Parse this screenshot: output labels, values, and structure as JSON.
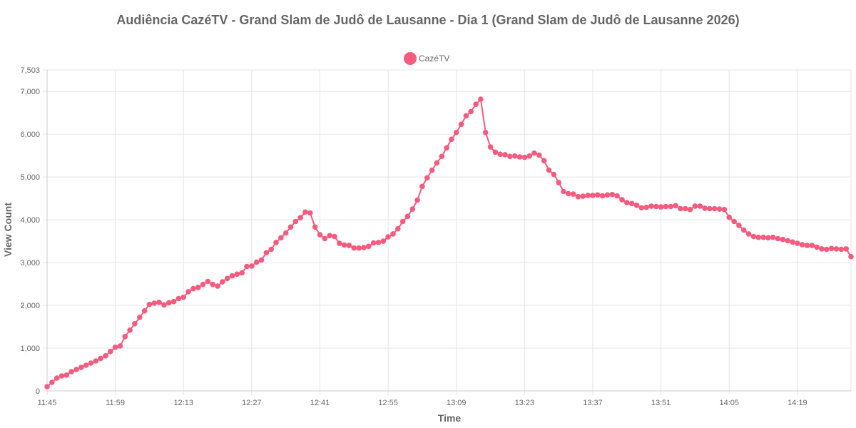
{
  "chart_data": {
    "type": "line",
    "title": "Audiência CazéTV - Grand Slam de Judô de Lausanne - Dia 1 (Grand Slam de Judô de Lausanne 2026)",
    "xlabel": "Time",
    "ylabel": "View Count",
    "ylim": [
      0,
      7503
    ],
    "y_ticks": [
      "0",
      "1,000",
      "2,000",
      "3,000",
      "4,000",
      "5,000",
      "6,000",
      "7,000",
      "7,503"
    ],
    "y_tick_values": [
      0,
      1000,
      2000,
      3000,
      4000,
      5000,
      6000,
      7000,
      7503
    ],
    "x_ticks": [
      "11:45",
      "11:59",
      "12:13",
      "12:27",
      "12:41",
      "12:55",
      "13:09",
      "13:23",
      "13:37",
      "13:51",
      "14:05",
      "14:19"
    ],
    "x_range": [
      "11:45",
      "14:30"
    ],
    "grid": true,
    "legend_position": "top-center",
    "series": [
      {
        "name": "CazéTV",
        "color": "#f45b7e",
        "x": [
          "11:45",
          "11:46",
          "11:47",
          "11:48",
          "11:49",
          "11:50",
          "11:51",
          "11:52",
          "11:53",
          "11:54",
          "11:55",
          "11:56",
          "11:57",
          "11:58",
          "11:59",
          "12:00",
          "12:01",
          "12:02",
          "12:03",
          "12:04",
          "12:05",
          "12:06",
          "12:07",
          "12:08",
          "12:09",
          "12:10",
          "12:11",
          "12:12",
          "12:13",
          "12:14",
          "12:15",
          "12:16",
          "12:17",
          "12:18",
          "12:19",
          "12:20",
          "12:21",
          "12:22",
          "12:23",
          "12:24",
          "12:25",
          "12:26",
          "12:27",
          "12:28",
          "12:29",
          "12:30",
          "12:31",
          "12:32",
          "12:33",
          "12:34",
          "12:35",
          "12:36",
          "12:37",
          "12:38",
          "12:39",
          "12:40",
          "12:41",
          "12:42",
          "12:43",
          "12:44",
          "12:45",
          "12:46",
          "12:47",
          "12:48",
          "12:49",
          "12:50",
          "12:51",
          "12:52",
          "12:53",
          "12:54",
          "12:55",
          "12:56",
          "12:57",
          "12:58",
          "12:59",
          "13:00",
          "13:01",
          "13:02",
          "13:03",
          "13:04",
          "13:05",
          "13:06",
          "13:07",
          "13:08",
          "13:09",
          "13:10",
          "13:11",
          "13:12",
          "13:13",
          "13:14",
          "13:15",
          "13:16",
          "13:17",
          "13:18",
          "13:19",
          "13:20",
          "13:21",
          "13:22",
          "13:23",
          "13:24",
          "13:25",
          "13:26",
          "13:27",
          "13:28",
          "13:29",
          "13:30",
          "13:31",
          "13:32",
          "13:33",
          "13:34",
          "13:35",
          "13:36",
          "13:37",
          "13:38",
          "13:39",
          "13:40",
          "13:41",
          "13:42",
          "13:43",
          "13:44",
          "13:45",
          "13:46",
          "13:47",
          "13:48",
          "13:49",
          "13:50",
          "13:51",
          "13:52",
          "13:53",
          "13:54",
          "13:55",
          "13:56",
          "13:57",
          "13:58",
          "13:59",
          "14:00",
          "14:01",
          "14:02",
          "14:03",
          "14:04",
          "14:05",
          "14:06",
          "14:07",
          "14:08",
          "14:09",
          "14:10",
          "14:11",
          "14:12",
          "14:13",
          "14:14",
          "14:15",
          "14:16",
          "14:17",
          "14:18",
          "14:19",
          "14:20",
          "14:21",
          "14:22",
          "14:23",
          "14:24",
          "14:25",
          "14:26",
          "14:27",
          "14:28",
          "14:29",
          "14:30"
        ],
        "values": [
          100,
          200,
          300,
          350,
          370,
          450,
          500,
          550,
          600,
          650,
          700,
          760,
          820,
          920,
          1020,
          1050,
          1270,
          1420,
          1570,
          1720,
          1870,
          2020,
          2050,
          2070,
          2010,
          2060,
          2090,
          2160,
          2190,
          2320,
          2390,
          2420,
          2490,
          2560,
          2490,
          2450,
          2550,
          2630,
          2690,
          2730,
          2760,
          2910,
          2920,
          3010,
          3060,
          3230,
          3310,
          3470,
          3580,
          3690,
          3830,
          3960,
          4050,
          4180,
          4160,
          3830,
          3650,
          3560,
          3630,
          3610,
          3450,
          3410,
          3400,
          3340,
          3340,
          3350,
          3380,
          3460,
          3470,
          3500,
          3600,
          3670,
          3790,
          3960,
          4080,
          4250,
          4460,
          4780,
          4980,
          5160,
          5330,
          5480,
          5680,
          5880,
          6040,
          6230,
          6430,
          6530,
          6700,
          6820,
          6040,
          5700,
          5580,
          5530,
          5520,
          5480,
          5490,
          5470,
          5460,
          5490,
          5560,
          5510,
          5380,
          5160,
          5060,
          4870,
          4660,
          4610,
          4600,
          4540,
          4550,
          4570,
          4570,
          4580,
          4560,
          4580,
          4590,
          4560,
          4470,
          4400,
          4380,
          4340,
          4280,
          4290,
          4320,
          4310,
          4300,
          4310,
          4310,
          4330,
          4260,
          4260,
          4240,
          4320,
          4320,
          4270,
          4260,
          4260,
          4250,
          4240,
          4060,
          3960,
          3870,
          3760,
          3670,
          3610,
          3590,
          3590,
          3580,
          3590,
          3560,
          3540,
          3510,
          3480,
          3450,
          3420,
          3400,
          3400,
          3360,
          3320,
          3310,
          3330,
          3320,
          3310,
          3320,
          3140
        ]
      }
    ]
  }
}
